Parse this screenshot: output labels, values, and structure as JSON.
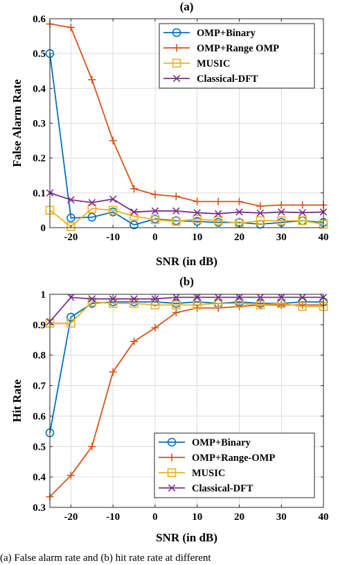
{
  "colors": {
    "omp_binary": "#0072BD",
    "omp_range": "#D95319",
    "music": "#EDB120",
    "classical_dft": "#7E2F8E"
  },
  "chart_data": [
    {
      "type": "line",
      "title": "(a)",
      "xlabel": "SNR (in dB)",
      "ylabel": "False Alarm Rate",
      "xlim": [
        -25,
        40
      ],
      "ylim": [
        0,
        0.6
      ],
      "xticks": [
        -20,
        -10,
        0,
        10,
        20,
        30,
        40
      ],
      "xtick_labels": [
        "-20",
        "-10",
        "0",
        "10",
        "20",
        "30",
        "40"
      ],
      "yticks": [
        0,
        0.1,
        0.2,
        0.3,
        0.4,
        0.5,
        0.6
      ],
      "ytick_labels": [
        "0",
        "0.1",
        "0.2",
        "0.3",
        "0.4",
        "0.5",
        "0.6"
      ],
      "grid": true,
      "legend_position": "top-right",
      "x": [
        -25,
        -20,
        -15,
        -10,
        -5,
        0,
        5,
        10,
        15,
        20,
        25,
        30,
        35,
        40
      ],
      "series": [
        {
          "name": "OMP+Binary",
          "marker": "circle",
          "color_key": "omp_binary",
          "values": [
            0.5,
            0.028,
            0.03,
            0.045,
            0.008,
            0.025,
            0.02,
            0.018,
            0.015,
            0.015,
            0.01,
            0.015,
            0.02,
            0.015
          ]
        },
        {
          "name": "OMP+Range OMP",
          "marker": "plus",
          "color_key": "omp_range",
          "values": [
            0.585,
            0.575,
            0.425,
            0.25,
            0.112,
            0.095,
            0.09,
            0.075,
            0.075,
            0.075,
            0.062,
            0.065,
            0.065,
            0.065
          ]
        },
        {
          "name": "MUSIC",
          "marker": "square",
          "color_key": "music",
          "values": [
            0.05,
            0.003,
            0.055,
            0.05,
            0.033,
            0.023,
            0.018,
            0.025,
            0.02,
            0.013,
            0.02,
            0.02,
            0.02,
            0.01
          ]
        },
        {
          "name": "Classical-DFT",
          "marker": "x",
          "color_key": "classical_dft",
          "values": [
            0.1,
            0.08,
            0.072,
            0.082,
            0.045,
            0.048,
            0.048,
            0.043,
            0.04,
            0.045,
            0.042,
            0.045,
            0.043,
            0.045
          ]
        }
      ]
    },
    {
      "type": "line",
      "title": "(b)",
      "xlabel": "SNR (in dB)",
      "ylabel": "Hit Rate",
      "xlim": [
        -25,
        40
      ],
      "ylim": [
        0.3,
        1.0
      ],
      "xticks": [
        -20,
        -10,
        0,
        10,
        20,
        30,
        40
      ],
      "xtick_labels": [
        "-20",
        "-10",
        "0",
        "10",
        "20",
        "30",
        "40"
      ],
      "yticks": [
        0.3,
        0.4,
        0.5,
        0.6,
        0.7,
        0.8,
        0.9,
        1.0
      ],
      "ytick_labels": [
        "0.3",
        "0.4",
        "0.5",
        "0.6",
        "0.7",
        "0.8",
        "0.9",
        "1"
      ],
      "grid": true,
      "legend_position": "bottom-right",
      "x": [
        -25,
        -20,
        -15,
        -10,
        -5,
        0,
        5,
        10,
        15,
        20,
        25,
        30,
        35,
        40
      ],
      "series": [
        {
          "name": "OMP+Binary",
          "marker": "circle",
          "color_key": "omp_binary",
          "values": [
            0.545,
            0.925,
            0.97,
            0.975,
            0.975,
            0.975,
            0.97,
            0.975,
            0.97,
            0.975,
            0.97,
            0.97,
            0.975,
            0.975
          ]
        },
        {
          "name": "OMP+Range-OMP",
          "marker": "plus",
          "color_key": "omp_range",
          "values": [
            0.335,
            0.405,
            0.5,
            0.745,
            0.845,
            0.89,
            0.94,
            0.955,
            0.955,
            0.96,
            0.965,
            0.965,
            0.965,
            0.965
          ]
        },
        {
          "name": "MUSIC",
          "marker": "square",
          "color_key": "music",
          "values": [
            0.905,
            0.905,
            0.975,
            0.97,
            0.97,
            0.965,
            0.965,
            0.965,
            0.97,
            0.97,
            0.965,
            0.97,
            0.96,
            0.96
          ]
        },
        {
          "name": "Classical-DFT",
          "marker": "x",
          "color_key": "classical_dft",
          "values": [
            0.91,
            0.99,
            0.985,
            0.985,
            0.985,
            0.985,
            0.99,
            0.99,
            0.99,
            0.99,
            0.99,
            0.99,
            0.99,
            0.99
          ]
        }
      ]
    }
  ],
  "caption": "(a)  False alarm rate and (b) hit rate rate at different"
}
